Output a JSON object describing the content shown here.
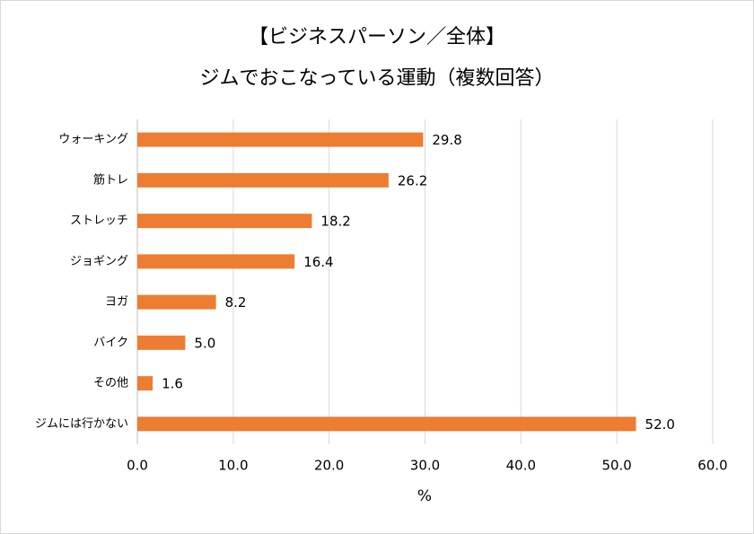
{
  "chart_data": {
    "type": "bar",
    "orientation": "horizontal",
    "title": "【ビジネスパーソン／全体】",
    "subtitle": "ジムでおこなっている運動（複数回答）",
    "x_label": "%",
    "categories": [
      "ウォーキング",
      "筋トレ",
      "ストレッチ",
      "ジョギング",
      "ヨガ",
      "バイク",
      "その他",
      "ジムには行かない"
    ],
    "values": [
      29.8,
      26.2,
      18.2,
      16.4,
      8.2,
      5.0,
      1.6,
      52.0
    ],
    "value_labels": [
      "29.8",
      "26.2",
      "18.2",
      "16.4",
      "8.2",
      "5.0",
      "1.6",
      "52.0"
    ],
    "color": "#ed7d31",
    "xlim": [
      0,
      60
    ],
    "xticks": [
      {
        "value": 0,
        "label": "0.0"
      },
      {
        "value": 10,
        "label": "10.0"
      },
      {
        "value": 20,
        "label": "20.0"
      },
      {
        "value": 30,
        "label": "30.0"
      },
      {
        "value": 40,
        "label": "40.0"
      },
      {
        "value": 50,
        "label": "50.0"
      },
      {
        "value": 60,
        "label": "60.0"
      }
    ],
    "grid": true
  }
}
